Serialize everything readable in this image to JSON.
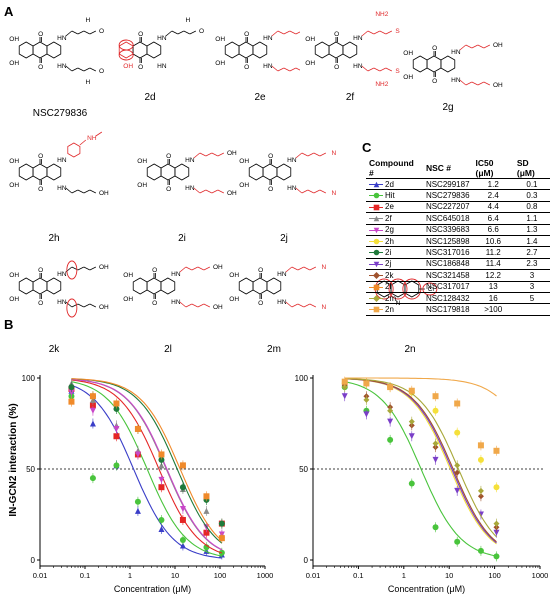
{
  "panels": {
    "a": "A",
    "b": "B",
    "c": "C"
  },
  "molecules": [
    {
      "id": "NSC279836",
      "label": "NSC279836"
    },
    {
      "id": "2d",
      "label": "2d"
    },
    {
      "id": "2e",
      "label": "2e"
    },
    {
      "id": "2f",
      "label": "2f"
    },
    {
      "id": "2g",
      "label": "2g"
    },
    {
      "id": "2h",
      "label": "2h"
    },
    {
      "id": "2i",
      "label": "2i"
    },
    {
      "id": "2j",
      "label": "2j"
    },
    {
      "id": "2k",
      "label": "2k"
    },
    {
      "id": "2l",
      "label": "2l"
    },
    {
      "id": "2m",
      "label": "2m"
    },
    {
      "id": "2n",
      "label": "2n"
    }
  ],
  "atoms": {
    "OH": "OH",
    "O": "O",
    "HN": "HN",
    "NH": "NH",
    "N": "N",
    "NH2": "NH2",
    "SH": "SH",
    "Cl": "Cl",
    "H": "H"
  },
  "table": {
    "headers": {
      "compound": "Compound #",
      "nsc": "NSC #",
      "ic50": "IC50 (μM)",
      "sd": "SD (μM)"
    },
    "rows": [
      {
        "compound": "2d",
        "nsc": "NSC299187",
        "ic50": "1.2",
        "sd": "0.1",
        "color": "#3a3ec8",
        "marker": "triangle"
      },
      {
        "compound": "Hit",
        "nsc": "NSC279836",
        "ic50": "2.4",
        "sd": "0.3",
        "color": "#49c43c",
        "marker": "circle"
      },
      {
        "compound": "2e",
        "nsc": "NSC227207",
        "ic50": "4.4",
        "sd": "0.8",
        "color": "#e52626",
        "marker": "square"
      },
      {
        "compound": "2f",
        "nsc": "NSC645018",
        "ic50": "6.4",
        "sd": "1.1",
        "color": "#8a8a8a",
        "marker": "triangle"
      },
      {
        "compound": "2g",
        "nsc": "NSC339683",
        "ic50": "6.6",
        "sd": "1.3",
        "color": "#c946c9",
        "marker": "triangle-down"
      },
      {
        "compound": "2h",
        "nsc": "NSC125898",
        "ic50": "10.6",
        "sd": "1.4",
        "color": "#f5e03a",
        "marker": "circle"
      },
      {
        "compound": "2i",
        "nsc": "NSC317016",
        "ic50": "11.2",
        "sd": "2.7",
        "color": "#1f7a3a",
        "marker": "circle"
      },
      {
        "compound": "2j",
        "nsc": "NSC186848",
        "ic50": "11.4",
        "sd": "2.3",
        "color": "#7a3ec8",
        "marker": "triangle-down"
      },
      {
        "compound": "2k",
        "nsc": "NSC321458",
        "ic50": "12.2",
        "sd": "3",
        "color": "#a0522d",
        "marker": "diamond"
      },
      {
        "compound": "2l",
        "nsc": "NSC317017",
        "ic50": "13",
        "sd": "3",
        "color": "#f08a2a",
        "marker": "square"
      },
      {
        "compound": "2m",
        "nsc": "NSC128432",
        "ic50": "16",
        "sd": "5",
        "color": "#a8a83a",
        "marker": "diamond"
      },
      {
        "compound": "2n",
        "nsc": "NSC179818",
        "ic50": ">100",
        "sd": "",
        "color": "#f0a84a",
        "marker": "square"
      }
    ]
  },
  "chart_data": [
    {
      "type": "scatter",
      "xlabel": "Concentration (μM)",
      "ylabel": "IN-GCN2 interaction (%)",
      "xscale": "log",
      "xlim": [
        0.01,
        1000
      ],
      "ylim": [
        0,
        100
      ],
      "xticks": [
        "0.01",
        "0.1",
        "1",
        "10",
        "100",
        "1000"
      ],
      "yticks": [
        "0",
        "50",
        "100"
      ],
      "reference_line": 50,
      "x": [
        0.05,
        0.15,
        0.5,
        1.5,
        5,
        15,
        50,
        110
      ],
      "series": [
        {
          "name": "2d",
          "color": "#3a3ec8",
          "marker": "triangle",
          "ic50": 1.2,
          "values": [
            93,
            75,
            52,
            27,
            17,
            8,
            5,
            3
          ]
        },
        {
          "name": "Hit",
          "color": "#49c43c",
          "marker": "circle",
          "ic50": 2.4,
          "values": [
            90,
            45,
            52,
            32,
            22,
            11,
            7,
            4
          ]
        },
        {
          "name": "2e",
          "color": "#e52626",
          "marker": "square",
          "ic50": 4.4,
          "values": [
            94,
            85,
            68,
            58,
            40,
            22,
            15,
            20
          ]
        },
        {
          "name": "2f",
          "color": "#8a8a8a",
          "marker": "triangle",
          "ic50": 6.4,
          "values": [
            97,
            88,
            74,
            60,
            52,
            39,
            27,
            14
          ]
        },
        {
          "name": "2g",
          "color": "#c946c9",
          "marker": "triangle-down",
          "ic50": 6.6,
          "values": [
            92,
            82,
            72,
            58,
            44,
            28,
            18,
            14
          ]
        },
        {
          "name": "2i",
          "color": "#1f7a3a",
          "marker": "circle",
          "ic50": 11.2,
          "values": [
            95,
            90,
            83,
            72,
            55,
            40,
            33,
            20
          ]
        },
        {
          "name": "2l",
          "color": "#f08a2a",
          "marker": "square",
          "ic50": 13,
          "values": [
            87,
            90,
            86,
            72,
            58,
            52,
            35,
            12
          ]
        }
      ]
    },
    {
      "type": "scatter",
      "xlabel": "Concentration (μM)",
      "xscale": "log",
      "xlim": [
        0.01,
        1000
      ],
      "ylim": [
        0,
        100
      ],
      "xticks": [
        "0.01",
        "0.1",
        "1",
        "10",
        "100",
        "1000"
      ],
      "yticks": [
        "0",
        "50",
        "100"
      ],
      "reference_line": 50,
      "x": [
        0.05,
        0.15,
        0.5,
        1.5,
        5,
        15,
        50,
        110
      ],
      "series": [
        {
          "name": "Hit",
          "color": "#49c43c",
          "marker": "circle",
          "ic50": 2.4,
          "values": [
            95,
            82,
            66,
            42,
            18,
            10,
            5,
            2
          ]
        },
        {
          "name": "2h",
          "color": "#f5e03a",
          "marker": "circle",
          "ic50": 10.6,
          "values": [
            97,
            97,
            95,
            92,
            82,
            70,
            55,
            40
          ]
        },
        {
          "name": "2j",
          "color": "#7a3ec8",
          "marker": "triangle-down",
          "ic50": 11.4,
          "values": [
            90,
            80,
            76,
            68,
            55,
            38,
            25,
            15
          ]
        },
        {
          "name": "2k",
          "color": "#a0522d",
          "marker": "diamond",
          "ic50": 12.2,
          "values": [
            96,
            90,
            84,
            74,
            62,
            48,
            35,
            18
          ]
        },
        {
          "name": "2m",
          "color": "#a8a83a",
          "marker": "diamond",
          "ic50": 16,
          "values": [
            95,
            88,
            82,
            76,
            64,
            52,
            38,
            20
          ]
        },
        {
          "name": "2n",
          "color": "#f0a84a",
          "marker": "square",
          "ic50": 1000,
          "values": [
            98,
            97,
            95,
            93,
            90,
            86,
            63,
            60
          ]
        }
      ]
    }
  ]
}
